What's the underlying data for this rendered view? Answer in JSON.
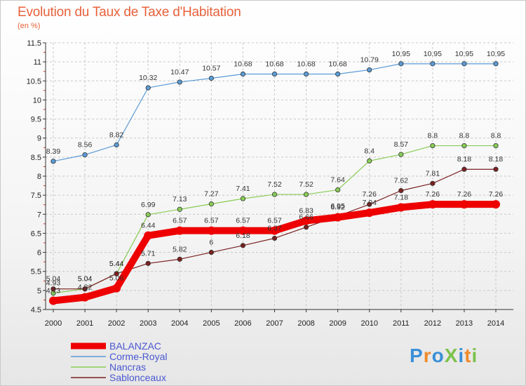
{
  "title": "Evolution du Taux de Taxe d'Habitation",
  "unit": "(en %)",
  "logo_text": "ProXiti",
  "colors": {
    "title": "#e8613a",
    "axis": "#333333",
    "grid": "#c8c8c8"
  },
  "chart_data": {
    "type": "line",
    "title": "Evolution du Taux de Taxe d'Habitation",
    "ylabel": "(en %)",
    "xlabel": "",
    "x": [
      "2000",
      "2001",
      "2002",
      "2003",
      "2004",
      "2005",
      "2006",
      "2007",
      "2008",
      "2009",
      "2010",
      "2011",
      "2012",
      "2013",
      "2014"
    ],
    "ylim": [
      4.5,
      11.5
    ],
    "yticks": [
      "4.5",
      "5",
      "5.5",
      "6",
      "6.5",
      "7",
      "7.5",
      "8",
      "8.5",
      "9",
      "9.5",
      "10",
      "10.5",
      "11",
      "11.5"
    ],
    "grid": true,
    "legend_position": "bottom-left",
    "series": [
      {
        "name": "BALANZAC",
        "color": "#ee0000",
        "values": [
          4.73,
          4.82,
          5.06,
          6.44,
          6.57,
          6.57,
          6.57,
          6.57,
          6.83,
          6.92,
          7.04,
          7.18,
          7.26,
          7.26,
          7.26
        ],
        "labels": [
          "4.73",
          "4.82",
          "5.06",
          "6.44",
          "6.57",
          "6.57",
          "6.57",
          "6.57",
          "6.83",
          "6.92",
          "7.04",
          "7.18",
          "7.26",
          "7.26",
          "7.26"
        ]
      },
      {
        "name": "Corme-Royal",
        "color": "#5b9bd5",
        "values": [
          8.39,
          8.56,
          8.82,
          10.32,
          10.47,
          10.57,
          10.68,
          10.68,
          10.68,
          10.68,
          10.79,
          10.95,
          10.95,
          10.95,
          10.95
        ],
        "labels": [
          "8.39",
          "8.56",
          "8.82",
          "10.32",
          "10.47",
          "10.57",
          "10.68",
          "10.68",
          "10.68",
          "10.68",
          "10.79",
          "10.95",
          "10.95",
          "10.95",
          "10.95"
        ]
      },
      {
        "name": "Nancras",
        "color": "#88cc55",
        "values": [
          4.93,
          5.04,
          5.44,
          6.99,
          7.13,
          7.27,
          7.41,
          7.52,
          7.52,
          7.64,
          8.4,
          8.57,
          8.8,
          8.8,
          8.8
        ],
        "labels": [
          "4.93",
          "5.04",
          "5.44",
          "6.99",
          "7.13",
          "7.27",
          "7.41",
          "7.52",
          "7.52",
          "7.64",
          "8.4",
          "8.57",
          "8.8",
          "8.8",
          "8.8"
        ]
      },
      {
        "name": "Sablonceaux",
        "color": "#7a2020",
        "values": [
          5.04,
          5.04,
          5.44,
          5.71,
          5.82,
          6.0,
          6.18,
          6.37,
          6.66,
          6.95,
          7.26,
          7.62,
          7.81,
          8.18,
          8.18
        ],
        "labels": [
          "5.04",
          "5.04",
          "5.44",
          "5.71",
          "5.82",
          "6",
          "6.18",
          "6.37",
          "6.66",
          "6.95",
          "7.26",
          "7.62",
          "7.81",
          "8.18",
          "8.18"
        ]
      }
    ]
  }
}
